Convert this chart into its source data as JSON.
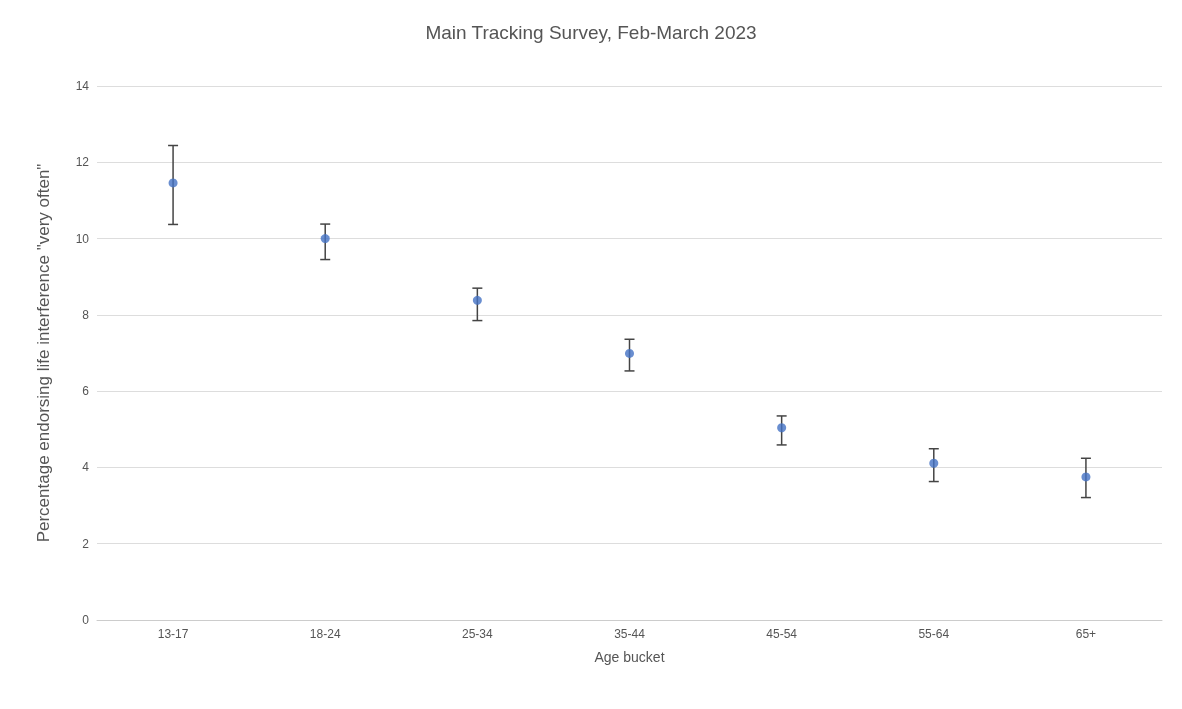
{
  "chart_data": {
    "type": "scatter",
    "title": "Main Tracking Survey, Feb-March 2023",
    "xlabel": "Age bucket",
    "ylabel": "Percentage endorsing life interference \"very often\"",
    "categories": [
      "13-17",
      "18-24",
      "25-34",
      "35-44",
      "45-54",
      "55-64",
      "65+"
    ],
    "values": [
      11.46,
      10.0,
      8.38,
      6.99,
      5.04,
      4.11,
      3.75
    ],
    "errors": [
      [
        10.37,
        12.44
      ],
      [
        9.45,
        10.38
      ],
      [
        7.85,
        8.7
      ],
      [
        6.53,
        7.36
      ],
      [
        4.59,
        5.35
      ],
      [
        3.63,
        4.49
      ],
      [
        3.21,
        4.24
      ]
    ],
    "color": "#4472c4",
    "ylim": [
      0,
      14
    ],
    "yticks": [
      0,
      2,
      4,
      6,
      8,
      10,
      12,
      14
    ],
    "grid": "y",
    "marker": "circle"
  }
}
